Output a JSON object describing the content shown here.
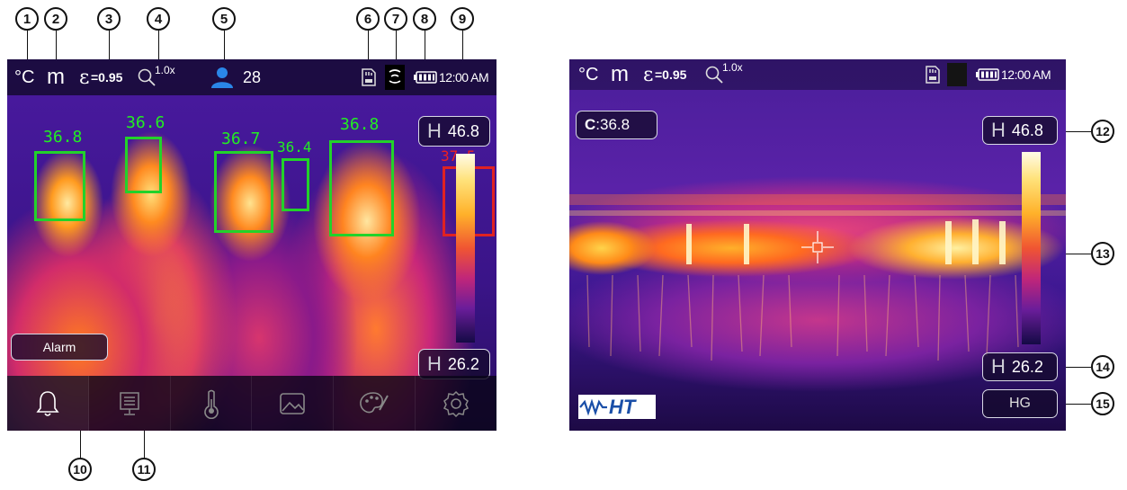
{
  "callouts": {
    "c1": "1",
    "c2": "2",
    "c3": "3",
    "c4": "4",
    "c5": "5",
    "c6": "6",
    "c7": "7",
    "c8": "8",
    "c9": "9",
    "c10": "10",
    "c11": "11",
    "c12": "12",
    "c13": "13",
    "c14": "14",
    "c15": "15"
  },
  "screen1": {
    "status": {
      "unit": "°C",
      "mode": "m",
      "emissivity_symbol": "ε",
      "emissivity_value": "=0.95",
      "zoom": "1.0x",
      "people_count": "28",
      "time": "12:00 AM"
    },
    "faces": [
      {
        "temp": "36.8",
        "alarm": false
      },
      {
        "temp": "36.6",
        "alarm": false
      },
      {
        "temp": "36.7",
        "alarm": false
      },
      {
        "temp": "36.4",
        "alarm": false
      },
      {
        "temp": "36.8",
        "alarm": false
      },
      {
        "temp": "37.5",
        "alarm": true
      }
    ],
    "high_label": "H",
    "high_value": "46.8",
    "low_label": "H",
    "low_value": "26.2",
    "alarm_label": "Alarm",
    "toolbar": [
      "bell-icon",
      "monitor-icon",
      "thermometer-icon",
      "image-icon",
      "palette-icon",
      "settings-icon"
    ]
  },
  "screen2": {
    "status": {
      "unit": "°C",
      "mode": "m",
      "emissivity_symbol": "ε",
      "emissivity_value": "=0.95",
      "zoom": "1.0x",
      "time": "12:00 AM"
    },
    "center_label": "C",
    "center_value": ":36.8",
    "high_label": "H",
    "high_value": "46.8",
    "low_label": "H",
    "low_value": "26.2",
    "gain_label": "HG",
    "logo_text": "HT"
  },
  "colors": {
    "face_ok": "#22d22a",
    "face_alarm": "#e02222",
    "statusbar": "#120a2d"
  }
}
